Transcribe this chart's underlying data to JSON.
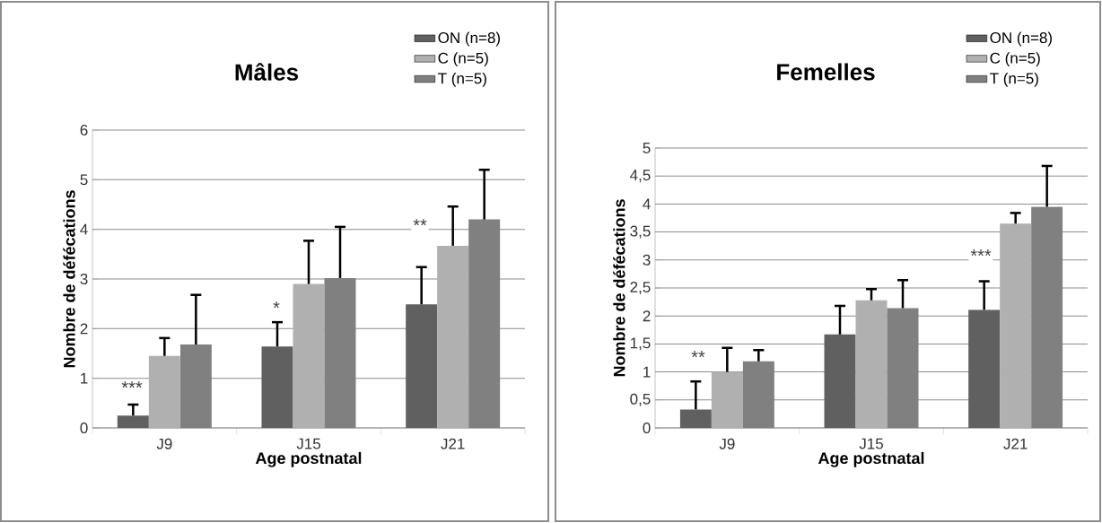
{
  "chart_data": [
    {
      "type": "bar",
      "title": "Mâles",
      "xlabel": "Age postnatal",
      "ylabel": "Nombre de défécations",
      "categories": [
        "J9",
        "J15",
        "J21"
      ],
      "series": [
        {
          "name": "ON (n=8)",
          "color": "#606060",
          "values": [
            0.25,
            1.64,
            2.49
          ],
          "errors": [
            0.22,
            0.49,
            0.75
          ]
        },
        {
          "name": "C (n=5)",
          "color": "#b0b0b0",
          "values": [
            1.45,
            2.9,
            3.67
          ],
          "errors": [
            0.36,
            0.87,
            0.79
          ]
        },
        {
          "name": "T (n=5)",
          "color": "#808080",
          "values": [
            1.68,
            3.02,
            4.2
          ],
          "errors": [
            1.0,
            1.03,
            1.0
          ]
        }
      ],
      "ylim": [
        0,
        6
      ],
      "yticks": [
        0,
        1,
        2,
        3,
        4,
        5,
        6
      ],
      "grid": "y",
      "legend": "top right",
      "annotations": [
        "***",
        "*",
        "**"
      ]
    },
    {
      "type": "bar",
      "title": "Femelles",
      "xlabel": "Age postnatal",
      "ylabel": "Nombre de défécations",
      "categories": [
        "J9",
        "J15",
        "J21"
      ],
      "series": [
        {
          "name": "ON (n=8)",
          "color": "#606060",
          "values": [
            0.33,
            1.67,
            2.11
          ],
          "errors": [
            0.5,
            0.51,
            0.51
          ]
        },
        {
          "name": "C (n=5)",
          "color": "#b0b0b0",
          "values": [
            1.0,
            2.28,
            3.65
          ],
          "errors": [
            0.43,
            0.2,
            0.19
          ]
        },
        {
          "name": "T (n=5)",
          "color": "#808080",
          "values": [
            1.19,
            2.14,
            3.95
          ],
          "errors": [
            0.2,
            0.5,
            0.73
          ]
        }
      ],
      "ylim": [
        0,
        5
      ],
      "yticks": [
        0,
        {
          "value": 0.5,
          "label": "0,5"
        },
        1,
        {
          "value": 1.5,
          "label": "1,5"
        },
        2,
        {
          "value": 2.5,
          "label": "2,5"
        },
        3,
        {
          "value": 3.5,
          "label": "3,5"
        },
        4,
        {
          "value": 4.5,
          "label": "4,5"
        },
        5
      ],
      "grid": "y",
      "legend": "top right",
      "annotations": [
        "**",
        "***"
      ]
    }
  ]
}
